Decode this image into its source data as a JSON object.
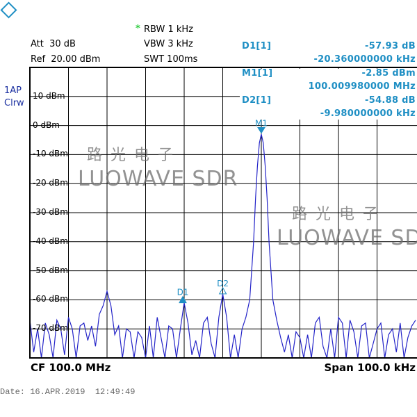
{
  "logo": {
    "text": "R&S",
    "color": "#1f8fc4"
  },
  "settings": {
    "rbw_marker": "*",
    "rbw": "RBW 1 kHz",
    "vbw": "VBW 3 kHz",
    "swt": "SWT 100ms",
    "att": "Att  30 dB",
    "ref": "Ref  20.00 dBm"
  },
  "trace_info": {
    "line1": "1AP",
    "line2": "Clrw"
  },
  "markers": {
    "d1": {
      "label": "D1[1]",
      "value": "-57.93 dB",
      "freq": "-20.360000000 kHz"
    },
    "m1": {
      "label": "M1[1]",
      "value": "-2.85 dBm",
      "freq": "100.009980000 MHz"
    },
    "d2": {
      "label": "D2[1]",
      "value": "-54.88 dB",
      "freq": "-9.980000000 kHz"
    }
  },
  "footer": {
    "cf": "CF 100.0 MHz",
    "span": "Span 100.0 kHz",
    "date": "Date: 16.APR.2019  12:49:49"
  },
  "watermark": {
    "cn": "路光电子",
    "en": "LUOWAVE SDR"
  },
  "chart_data": {
    "type": "line",
    "xlabel": "",
    "ylabel": "",
    "x_unit": "kHz offset from CF",
    "xlim": [
      -50,
      50
    ],
    "ylim": [
      -80,
      20
    ],
    "grid": true,
    "trace_color": "#2323c8",
    "y_ticks": [
      "10 dBm",
      "0 dBm",
      "-10 dBm",
      "-20 dBm",
      "-30 dBm",
      "-40 dBm",
      "-50 dBm",
      "-60 dBm",
      "-70 dBm"
    ],
    "y_tick_values": [
      10,
      0,
      -10,
      -20,
      -30,
      -40,
      -50,
      -60,
      -70
    ],
    "marker_points": [
      {
        "label": "M1",
        "x": 10,
        "y": -2.85
      },
      {
        "label": "D1",
        "x": -10.36,
        "y": -60.78
      },
      {
        "label": "D2",
        "x": 0.02,
        "y": -57.73
      }
    ],
    "x": [
      -50,
      -49,
      -48,
      -47,
      -46,
      -45,
      -44,
      -43,
      -42,
      -41,
      -40,
      -39,
      -38,
      -37,
      -36,
      -35,
      -34,
      -33,
      -32,
      -31,
      -30,
      -29,
      -28,
      -27,
      -26,
      -25,
      -24,
      -23,
      -22,
      -21,
      -20,
      -19,
      -18,
      -17,
      -16,
      -15,
      -14,
      -13,
      -12,
      -11,
      -10,
      -9,
      -8,
      -7,
      -6,
      -5,
      -4,
      -3,
      -2,
      -1,
      0,
      1,
      2,
      3,
      4,
      5,
      6,
      7,
      8,
      8.5,
      9,
      9.5,
      10,
      10.5,
      11,
      11.5,
      12,
      13,
      14,
      15,
      16,
      17,
      18,
      19,
      20,
      21,
      22,
      23,
      24,
      25,
      26,
      27,
      28,
      29,
      30,
      31,
      32,
      33,
      34,
      35,
      36,
      37,
      38,
      39,
      40,
      41,
      42,
      43,
      44,
      45,
      46,
      47,
      48,
      49,
      50
    ],
    "y": [
      -67,
      -78,
      -70,
      -80,
      -68,
      -72,
      -80,
      -67,
      -70,
      -79,
      -66,
      -70,
      -80,
      -69,
      -68,
      -74,
      -69,
      -76,
      -65,
      -62,
      -57,
      -62,
      -72,
      -69,
      -80,
      -70,
      -71,
      -80,
      -71,
      -73,
      -80,
      -69,
      -80,
      -66,
      -73,
      -80,
      -69,
      -70,
      -80,
      -70,
      -61,
      -68,
      -79,
      -74,
      -80,
      -68,
      -66,
      -75,
      -80,
      -66,
      -58,
      -66,
      -80,
      -72,
      -80,
      -70,
      -66,
      -60,
      -40,
      -25,
      -14,
      -6,
      -3,
      -6,
      -14,
      -25,
      -40,
      -60,
      -67,
      -73,
      -78,
      -72,
      -80,
      -71,
      -73,
      -80,
      -72,
      -80,
      -68,
      -66,
      -76,
      -80,
      -70,
      -80,
      -66,
      -68,
      -80,
      -67,
      -71,
      -80,
      -69,
      -68,
      -80,
      -75,
      -70,
      -68,
      -80,
      -72,
      -70,
      -78,
      -68,
      -80,
      -73,
      -69,
      -67
    ]
  }
}
